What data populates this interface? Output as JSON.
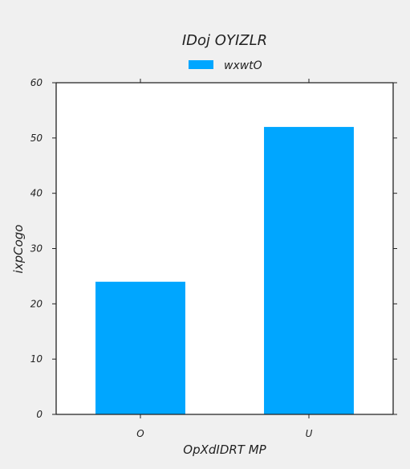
{
  "chart_data": {
    "type": "bar",
    "title": "IDoj OYIZLR",
    "xlabel": "OpXdIDRT MP",
    "ylabel": "ixpCogo",
    "categories": [
      "O",
      "U"
    ],
    "series": [
      {
        "name": "wxwtO",
        "values": [
          24,
          52
        ]
      }
    ],
    "ylim": [
      0,
      60
    ],
    "yticks": [
      0,
      10,
      20,
      30,
      40,
      50,
      60
    ],
    "grid": false,
    "legend_position": "top-center"
  },
  "colors": {
    "background": "#f0f0f0",
    "plot_background": "#ffffff",
    "bar": "#00a6ff",
    "axis": "#222222",
    "text": "#222222"
  }
}
